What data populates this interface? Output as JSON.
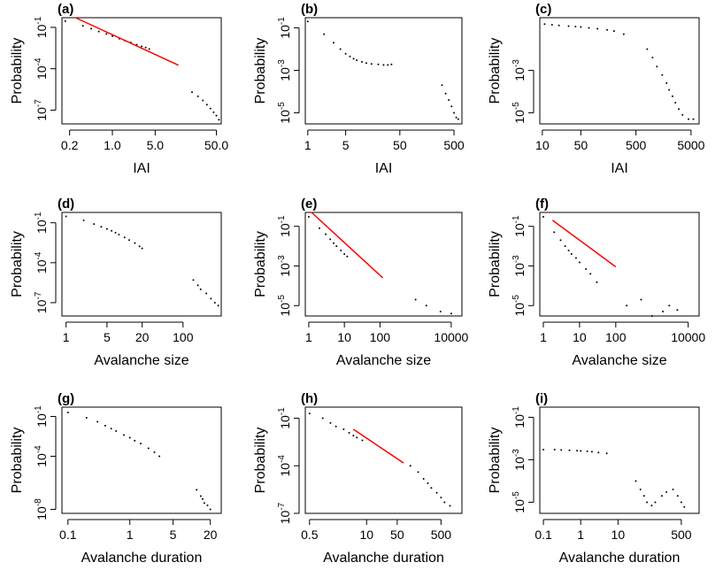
{
  "chart_data": [
    {
      "type": "scatter",
      "label": "(a)",
      "xlabel": "IAI",
      "ylabel": "Probability",
      "xlim": [
        0.15,
        60
      ],
      "ylim": [
        1e-08,
        0.5
      ],
      "log_x": true,
      "log_y": true,
      "xticks": [
        {
          "v": 0.2,
          "t": "0.2"
        },
        {
          "v": 1,
          "t": "1.0"
        },
        {
          "v": 5,
          "t": "5.0"
        },
        {
          "v": 50,
          "t": "50.0"
        }
      ],
      "yticks": [
        {
          "v": 1e-07,
          "t": "10^-7"
        },
        {
          "v": 0.0001,
          "t": "10^-4"
        },
        {
          "v": 0.1,
          "t": "10^-1"
        }
      ],
      "points": [
        [
          0.17,
          0.28
        ],
        [
          0.33,
          0.13
        ],
        [
          0.45,
          0.08
        ],
        [
          0.6,
          0.05
        ],
        [
          0.8,
          0.033
        ],
        [
          1.0,
          0.023
        ],
        [
          1.3,
          0.015
        ],
        [
          1.6,
          0.011
        ],
        [
          2.0,
          0.008
        ],
        [
          2.5,
          0.0055
        ],
        [
          3.0,
          0.0042
        ],
        [
          3.5,
          0.0034
        ],
        [
          4.0,
          0.0027
        ],
        [
          20,
          2e-06
        ],
        [
          25,
          1e-06
        ],
        [
          30,
          5e-07
        ],
        [
          35,
          2.5e-07
        ],
        [
          40,
          1.3e-07
        ],
        [
          45,
          7e-08
        ],
        [
          50,
          4e-08
        ],
        [
          55,
          2e-08
        ]
      ],
      "fit": [
        [
          0.25,
          0.5
        ],
        [
          12,
          0.00018
        ]
      ]
    },
    {
      "type": "scatter",
      "label": "(b)",
      "xlabel": "IAI",
      "ylabel": "Probability",
      "xlim": [
        0.9,
        700
      ],
      "ylim": [
        3e-06,
        0.3
      ],
      "log_x": true,
      "log_y": true,
      "xticks": [
        {
          "v": 1,
          "t": "1"
        },
        {
          "v": 5,
          "t": "5"
        },
        {
          "v": 50,
          "t": "50"
        },
        {
          "v": 500,
          "t": "500"
        }
      ],
      "yticks": [
        {
          "v": 1e-05,
          "t": "10^-5"
        },
        {
          "v": 0.001,
          "t": "10^-3"
        },
        {
          "v": 0.1,
          "t": "10^-1"
        }
      ],
      "points": [
        [
          1,
          0.2
        ],
        [
          2,
          0.05
        ],
        [
          3,
          0.02
        ],
        [
          4,
          0.01
        ],
        [
          5,
          0.006
        ],
        [
          6,
          0.0045
        ],
        [
          7,
          0.0035
        ],
        [
          8,
          0.003
        ],
        [
          10,
          0.0025
        ],
        [
          12,
          0.0022
        ],
        [
          15,
          0.002
        ],
        [
          20,
          0.0019
        ],
        [
          25,
          0.0018
        ],
        [
          30,
          0.0018
        ],
        [
          35,
          0.0019
        ],
        [
          300,
          0.0002
        ],
        [
          350,
          8e-05
        ],
        [
          400,
          4e-05
        ],
        [
          450,
          2e-05
        ],
        [
          500,
          1e-05
        ],
        [
          550,
          6e-06
        ],
        [
          600,
          5e-06
        ]
      ]
    },
    {
      "type": "scatter",
      "label": "(c)",
      "xlabel": "IAI",
      "ylabel": "Probability",
      "xlim": [
        9,
        7000
      ],
      "ylim": [
        3e-06,
        0.3
      ],
      "log_x": true,
      "log_y": true,
      "xticks": [
        {
          "v": 10,
          "t": "10"
        },
        {
          "v": 50,
          "t": "50"
        },
        {
          "v": 500,
          "t": "500"
        },
        {
          "v": 5000,
          "t": "5000"
        }
      ],
      "yticks": [
        {
          "v": 1e-05,
          "t": "10^-5"
        },
        {
          "v": 0.001,
          "t": "10^-3"
        }
      ],
      "points": [
        [
          11,
          0.15
        ],
        [
          15,
          0.14
        ],
        [
          20,
          0.13
        ],
        [
          30,
          0.12
        ],
        [
          40,
          0.115
        ],
        [
          50,
          0.11
        ],
        [
          70,
          0.1
        ],
        [
          100,
          0.09
        ],
        [
          150,
          0.08
        ],
        [
          200,
          0.07
        ],
        [
          300,
          0.05
        ],
        [
          800,
          0.01
        ],
        [
          1000,
          0.004
        ],
        [
          1200,
          0.0015
        ],
        [
          1500,
          0.0006
        ],
        [
          1800,
          0.00025
        ],
        [
          2000,
          0.00012
        ],
        [
          2300,
          6e-05
        ],
        [
          2600,
          3e-05
        ],
        [
          3000,
          1.5e-05
        ],
        [
          3500,
          8e-06
        ],
        [
          4500,
          5e-06
        ],
        [
          5500,
          5e-06
        ]
      ]
    },
    {
      "type": "scatter",
      "label": "(d)",
      "xlabel": "Avalanche size",
      "ylabel": "Probability",
      "xlim": [
        0.85,
        450
      ],
      "ylim": [
        1e-08,
        0.6
      ],
      "log_x": true,
      "log_y": true,
      "xticks": [
        {
          "v": 1,
          "t": "1"
        },
        {
          "v": 5,
          "t": "5"
        },
        {
          "v": 20,
          "t": "20"
        },
        {
          "v": 100,
          "t": "100"
        }
      ],
      "yticks": [
        {
          "v": 1e-07,
          "t": "10^-7"
        },
        {
          "v": 0.0001,
          "t": "10^-4"
        },
        {
          "v": 0.1,
          "t": "10^-1"
        }
      ],
      "points": [
        [
          1,
          0.3
        ],
        [
          2,
          0.15
        ],
        [
          3,
          0.08
        ],
        [
          4,
          0.05
        ],
        [
          5,
          0.035
        ],
        [
          6,
          0.025
        ],
        [
          7,
          0.018
        ],
        [
          8,
          0.013
        ],
        [
          10,
          0.008
        ],
        [
          12,
          0.005
        ],
        [
          15,
          0.003
        ],
        [
          18,
          0.0017
        ],
        [
          20,
          0.0012
        ],
        [
          150,
          5e-06
        ],
        [
          180,
          2e-06
        ],
        [
          200,
          1e-06
        ],
        [
          250,
          5e-07
        ],
        [
          300,
          2e-07
        ],
        [
          350,
          1e-07
        ],
        [
          400,
          6e-08
        ]
      ]
    },
    {
      "type": "scatter",
      "label": "(e)",
      "xlabel": "Avalanche size",
      "ylabel": "Probability",
      "xlim": [
        0.8,
        20000
      ],
      "ylim": [
        3e-06,
        0.5
      ],
      "log_x": true,
      "log_y": true,
      "xticks": [
        {
          "v": 1,
          "t": "1"
        },
        {
          "v": 10,
          "t": "10"
        },
        {
          "v": 100,
          "t": "100"
        },
        {
          "v": 10000,
          "t": "10000"
        }
      ],
      "yticks": [
        {
          "v": 1e-05,
          "t": "10^-5"
        },
        {
          "v": 0.001,
          "t": "10^-3"
        },
        {
          "v": 0.1,
          "t": "10^-1"
        }
      ],
      "points": [
        [
          1,
          0.3
        ],
        [
          2,
          0.08
        ],
        [
          3,
          0.04
        ],
        [
          4,
          0.022
        ],
        [
          5,
          0.014
        ],
        [
          6,
          0.01
        ],
        [
          8,
          0.006
        ],
        [
          10,
          0.004
        ],
        [
          12,
          0.003
        ],
        [
          1000,
          2e-05
        ],
        [
          2000,
          1e-05
        ],
        [
          5000,
          5e-06
        ],
        [
          10000,
          4e-06
        ]
      ],
      "fit": [
        [
          1.2,
          0.5
        ],
        [
          120,
          0.00025
        ]
      ]
    },
    {
      "type": "scatter",
      "label": "(f)",
      "xlabel": "Avalanche size",
      "ylabel": "Probability",
      "xlim": [
        0.8,
        20000
      ],
      "ylim": [
        3e-06,
        0.5
      ],
      "log_x": true,
      "log_y": true,
      "xticks": [
        {
          "v": 1,
          "t": "1"
        },
        {
          "v": 10,
          "t": "10"
        },
        {
          "v": 100,
          "t": "100"
        },
        {
          "v": 10000,
          "t": "10000"
        }
      ],
      "yticks": [
        {
          "v": 1e-05,
          "t": "10^-5"
        },
        {
          "v": 0.001,
          "t": "10^-3"
        },
        {
          "v": 0.1,
          "t": "10^-1"
        }
      ],
      "points": [
        [
          1,
          0.3
        ],
        [
          2,
          0.05
        ],
        [
          3,
          0.02
        ],
        [
          4,
          0.01
        ],
        [
          5,
          0.006
        ],
        [
          6,
          0.004
        ],
        [
          8,
          0.0025
        ],
        [
          10,
          0.0015
        ],
        [
          15,
          0.0007
        ],
        [
          20,
          0.0004
        ],
        [
          30,
          0.00015
        ],
        [
          200,
          1e-05
        ],
        [
          500,
          2e-05
        ],
        [
          1000,
          3e-06
        ],
        [
          2000,
          5e-06
        ],
        [
          3000,
          1e-05
        ],
        [
          5000,
          6e-06
        ]
      ],
      "fit": [
        [
          1.8,
          0.2
        ],
        [
          100,
          0.0009
        ]
      ]
    },
    {
      "type": "scatter",
      "label": "(g)",
      "xlabel": "Avalanche duration",
      "ylabel": "Probability",
      "xlim": [
        0.08,
        30
      ],
      "ylim": [
        5e-09,
        0.5
      ],
      "log_x": true,
      "log_y": true,
      "xticks": [
        {
          "v": 0.1,
          "t": "0.1"
        },
        {
          "v": 1,
          "t": "1"
        },
        {
          "v": 5,
          "t": "5"
        },
        {
          "v": 20,
          "t": "20"
        }
      ],
      "yticks": [
        {
          "v": 1e-08,
          "t": "10^-8"
        },
        {
          "v": 0.0001,
          "t": "10^-4"
        },
        {
          "v": 0.1,
          "t": "10^-1"
        }
      ],
      "points": [
        [
          0.1,
          0.2
        ],
        [
          0.2,
          0.08
        ],
        [
          0.3,
          0.04
        ],
        [
          0.4,
          0.02
        ],
        [
          0.5,
          0.012
        ],
        [
          0.6,
          0.008
        ],
        [
          0.8,
          0.004
        ],
        [
          1.0,
          0.0025
        ],
        [
          1.2,
          0.0015
        ],
        [
          1.5,
          0.0009
        ],
        [
          2.0,
          0.0004
        ],
        [
          2.5,
          0.0002
        ],
        [
          3.0,
          0.0001
        ],
        [
          12,
          3e-07
        ],
        [
          14,
          1e-07
        ],
        [
          15,
          6e-08
        ],
        [
          16,
          3e-08
        ],
        [
          18,
          2e-08
        ],
        [
          20,
          1e-08
        ]
      ]
    },
    {
      "type": "scatter",
      "label": "(h)",
      "xlabel": "Avalanche duration",
      "ylabel": "Probability",
      "xlim": [
        0.4,
        1500
      ],
      "ylim": [
        1e-07,
        0.5
      ],
      "log_x": true,
      "log_y": true,
      "xticks": [
        {
          "v": 0.5,
          "t": "0.5"
        },
        {
          "v": 10,
          "t": "10"
        },
        {
          "v": 50,
          "t": "50"
        },
        {
          "v": 500,
          "t": "500"
        }
      ],
      "yticks": [
        {
          "v": 1e-07,
          "t": "10^-7"
        },
        {
          "v": 0.0001,
          "t": "10^-4"
        },
        {
          "v": 0.1,
          "t": "10^-1"
        }
      ],
      "points": [
        [
          0.5,
          0.2
        ],
        [
          1,
          0.1
        ],
        [
          1.5,
          0.05
        ],
        [
          2,
          0.03
        ],
        [
          3,
          0.02
        ],
        [
          4,
          0.012
        ],
        [
          5,
          0.008
        ],
        [
          6,
          0.006
        ],
        [
          8,
          0.004
        ],
        [
          100,
          0.0001
        ],
        [
          150,
          4e-05
        ],
        [
          200,
          1.5e-05
        ],
        [
          250,
          8e-06
        ],
        [
          300,
          4e-06
        ],
        [
          400,
          2e-06
        ],
        [
          500,
          1e-06
        ],
        [
          600,
          5e-07
        ],
        [
          800,
          3e-07
        ]
      ],
      "fit": [
        [
          5,
          0.02
        ],
        [
          70,
          0.00015
        ]
      ]
    },
    {
      "type": "scatter",
      "label": "(i)",
      "xlabel": "Avalanche duration",
      "ylabel": "Probability",
      "xlim": [
        0.08,
        1500
      ],
      "ylim": [
        3e-06,
        0.3
      ],
      "log_x": true,
      "log_y": true,
      "xticks": [
        {
          "v": 0.1,
          "t": "0.1"
        },
        {
          "v": 1,
          "t": "1"
        },
        {
          "v": 10,
          "t": "10"
        },
        {
          "v": 500,
          "t": "500"
        }
      ],
      "yticks": [
        {
          "v": 1e-05,
          "t": "10^-5"
        },
        {
          "v": 0.001,
          "t": "10^-3"
        },
        {
          "v": 0.1,
          "t": "10^-1"
        }
      ],
      "points": [
        [
          0.1,
          0.003
        ],
        [
          0.2,
          0.003
        ],
        [
          0.3,
          0.0029
        ],
        [
          0.5,
          0.0028
        ],
        [
          0.8,
          0.0027
        ],
        [
          1,
          0.0026
        ],
        [
          1.5,
          0.0025
        ],
        [
          2,
          0.0024
        ],
        [
          3,
          0.0022
        ],
        [
          5,
          0.002
        ],
        [
          30,
          0.0001
        ],
        [
          40,
          4e-05
        ],
        [
          50,
          2e-05
        ],
        [
          60,
          1e-05
        ],
        [
          80,
          7e-06
        ],
        [
          100,
          1e-05
        ],
        [
          150,
          2e-05
        ],
        [
          200,
          3e-05
        ],
        [
          300,
          4e-05
        ],
        [
          400,
          2e-05
        ],
        [
          500,
          1e-05
        ],
        [
          600,
          6e-06
        ]
      ]
    }
  ]
}
